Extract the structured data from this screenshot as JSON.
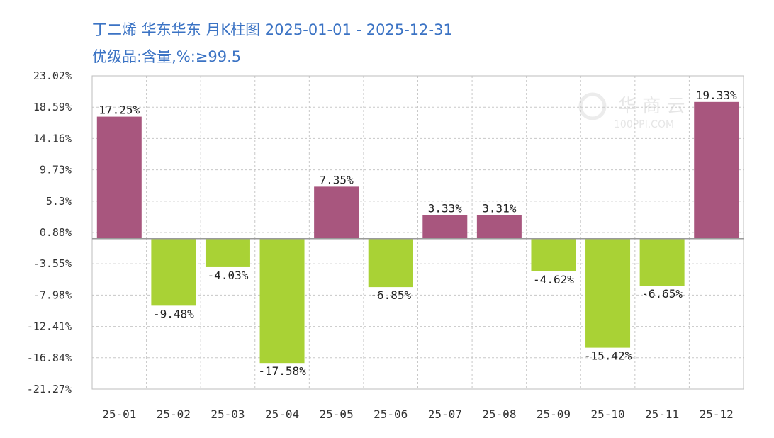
{
  "header": {
    "title": "丁二烯 华东华东 月K柱图 2025-01-01 - 2025-12-31",
    "subtitle": "优级品:含量,%:≥99.5"
  },
  "watermark": {
    "text": "华 商 云",
    "url": "100PPI.COM"
  },
  "colors": {
    "positive": "#a8567e",
    "negative": "#a9d235",
    "grid": "#c8c8c8",
    "title": "#3b73c4"
  },
  "chart_data": {
    "type": "bar",
    "categories": [
      "25-01",
      "25-02",
      "25-03",
      "25-04",
      "25-05",
      "25-06",
      "25-07",
      "25-08",
      "25-09",
      "25-10",
      "25-11",
      "25-12"
    ],
    "values": [
      17.25,
      -9.48,
      -4.03,
      -17.58,
      7.35,
      -6.85,
      3.33,
      3.31,
      -4.62,
      -15.42,
      -6.65,
      19.33
    ],
    "data_labels": [
      "17.25%",
      "-9.48%",
      "-4.03%",
      "-17.58%",
      "7.35%",
      "-6.85%",
      "3.33%",
      "3.31%",
      "-4.62%",
      "-15.42%",
      "-6.65%",
      "19.33%"
    ],
    "y_ticks": [
      23.02,
      18.59,
      14.16,
      9.73,
      5.3,
      0.88,
      -3.55,
      -7.98,
      -12.41,
      -16.84,
      -21.27
    ],
    "y_tick_labels": [
      "23.02%",
      "18.59%",
      "14.16%",
      "9.73%",
      "5.3%",
      "0.88%",
      "-3.55%",
      "-7.98%",
      "-12.41%",
      "-16.84%",
      "-21.27%"
    ],
    "ylim": [
      -21.27,
      23.02
    ],
    "grid": true,
    "legend": "none"
  }
}
